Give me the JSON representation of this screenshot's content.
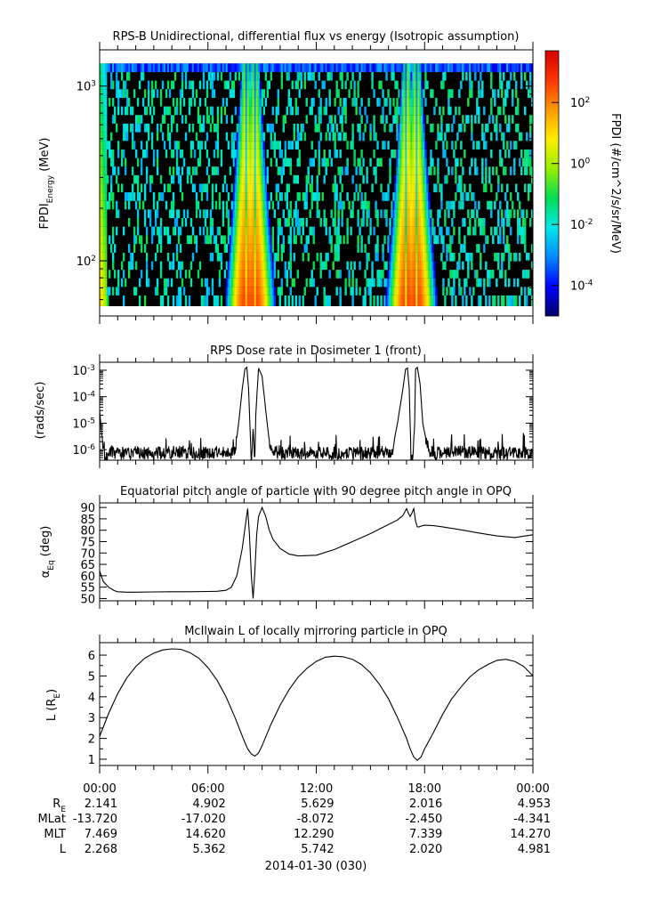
{
  "colors": {
    "background": "#ffffff",
    "line": "#000000",
    "colormap": [
      "#00006a",
      "#0000ff",
      "#0088ff",
      "#00e8e8",
      "#00dd55",
      "#99ee00",
      "#ffee00",
      "#ff9900",
      "#ff3300",
      "#d40000"
    ]
  },
  "chart_data": [
    {
      "type": "heatmap",
      "title": "RPS-B  Unidirectional, differential flux vs energy (Isotropic assumption)",
      "ylabel_main": "FPDI",
      "ylabel_sub": "Energy",
      "ylabel_unit": "(MeV)",
      "y_scale": "log",
      "ylim": [
        55,
        1400
      ],
      "y_ticks": [
        {
          "value": 100,
          "label": "10",
          "exp": "2"
        },
        {
          "value": 1000,
          "label": "10",
          "exp": "3"
        }
      ],
      "colorbar_label": "FPDI (#/cm^2/s/sr/MeV)",
      "colorbar_scale": "log",
      "colorbar_range": [
        1e-05,
        5000
      ],
      "colorbar_ticks": [
        {
          "value": 0.0001,
          "label": "10",
          "exp": "-4"
        },
        {
          "value": 0.01,
          "label": "10",
          "exp": "-2"
        },
        {
          "value": 1,
          "label": "10",
          "exp": "0"
        },
        {
          "value": 100,
          "label": "10",
          "exp": "2"
        }
      ],
      "energy_channels_mev": [
        60,
        67,
        75,
        84,
        94,
        105,
        118,
        132,
        148,
        166,
        186,
        208,
        233,
        261,
        292,
        327,
        366,
        410,
        459,
        514,
        576,
        645,
        722,
        809,
        906,
        1015,
        1137,
        1270
      ],
      "peak_flux_hours": [
        8.1,
        8.6,
        17.0,
        17.55
      ],
      "grid": false
    },
    {
      "type": "line",
      "title": "RPS  Dose rate in Dosimeter 1 (front)",
      "ylabel": "(rads/sec)",
      "y_scale": "log",
      "ylim": [
        4e-07,
        0.002
      ],
      "y_ticks": [
        {
          "value": 1e-06,
          "label": "10",
          "exp": "-6"
        },
        {
          "value": 1e-05,
          "label": "10",
          "exp": "-5"
        },
        {
          "value": 0.0001,
          "label": "10",
          "exp": "-4"
        },
        {
          "value": 0.001,
          "label": "10",
          "exp": "-3"
        }
      ],
      "x_hours": [
        0,
        0.1,
        0.2,
        0.3,
        0.4,
        0.5,
        1,
        2,
        3,
        4,
        5,
        6,
        7,
        7.5,
        7.7,
        7.9,
        8.05,
        8.15,
        8.25,
        8.4,
        8.5,
        8.6,
        8.65,
        8.8,
        9.0,
        9.2,
        9.4,
        9.6,
        10,
        12,
        14,
        16,
        16.2,
        16.5,
        16.8,
        16.95,
        17.05,
        17.15,
        17.25,
        17.35,
        17.45,
        17.5,
        17.6,
        17.75,
        17.9,
        18.1,
        18.3,
        18.6,
        20,
        22,
        24
      ],
      "y": [
        3e-05,
        5e-06,
        1.5e-06,
        6e-07,
        4e-07,
        8e-07,
        7e-07,
        8e-07,
        7e-07,
        8e-07,
        7e-07,
        8e-07,
        8e-07,
        8e-07,
        1e-05,
        0.0002,
        0.0011,
        0.0013,
        0.0002,
        4e-07,
        6e-06,
        4e-07,
        2e-05,
        0.0012,
        0.0006,
        3e-05,
        2e-06,
        8e-07,
        7e-07,
        8e-07,
        7e-07,
        8e-07,
        9e-07,
        1e-05,
        0.0002,
        0.0011,
        0.0012,
        0.0002,
        4e-07,
        4e-07,
        1e-05,
        0.0011,
        0.0013,
        0.0003,
        1e-05,
        2e-06,
        8e-07,
        7e-07,
        8e-07,
        7e-07,
        8e-07
      ],
      "noise": true,
      "grid": false
    },
    {
      "type": "line",
      "title": "Equatorial pitch angle of particle with 90 degree pitch angle in OPQ",
      "ylabel_main": "α",
      "ylabel_sub": "Eq",
      "ylabel_unit": "(deg)",
      "ylim": [
        49,
        92
      ],
      "y_ticks": [
        50,
        55,
        60,
        65,
        70,
        75,
        80,
        85,
        90
      ],
      "x_hours": [
        0,
        0.2,
        0.5,
        0.8,
        1,
        1.5,
        2,
        3,
        4,
        5,
        6,
        6.5,
        7,
        7.3,
        7.6,
        7.9,
        8.1,
        8.2,
        8.3,
        8.4,
        8.5,
        8.6,
        8.7,
        8.8,
        9.0,
        9.2,
        9.4,
        9.6,
        10,
        10.5,
        11,
        12,
        13,
        14,
        15,
        16,
        16.5,
        16.8,
        17.0,
        17.1,
        17.2,
        17.3,
        17.4,
        17.5,
        17.6,
        17.7,
        17.8,
        18,
        18.5,
        19,
        20,
        21,
        22,
        23,
        24
      ],
      "y": [
        62,
        57.5,
        55,
        53.5,
        53,
        52.8,
        52.8,
        52.9,
        53,
        53,
        53.1,
        53.2,
        53.6,
        55,
        60,
        72,
        84,
        89.5,
        78,
        60,
        50,
        62,
        78,
        86,
        90,
        86,
        80,
        76,
        72,
        69.5,
        68.7,
        69,
        71.5,
        75,
        78.5,
        82.5,
        84.5,
        86.5,
        89.5,
        87.5,
        86,
        87.5,
        89.5,
        84,
        81.5,
        81.5,
        81.8,
        82.2,
        82,
        81.5,
        80.2,
        78.8,
        77.5,
        76.8,
        78
      ]
    },
    {
      "type": "line",
      "title": "McIlwain L of locally mirroring particle in OPQ",
      "ylabel_main": "L (R",
      "ylabel_sub": "E",
      "ylabel_unit": ")",
      "ylim": [
        0.7,
        6.6
      ],
      "y_ticks": [
        1,
        2,
        3,
        4,
        5,
        6
      ],
      "x_hours": [
        0,
        0.5,
        1,
        1.5,
        2,
        2.5,
        3,
        3.5,
        4,
        4.5,
        5,
        5.5,
        6,
        6.5,
        7,
        7.5,
        8,
        8.2,
        8.4,
        8.6,
        8.8,
        9,
        9.5,
        10,
        10.5,
        11,
        11.5,
        12,
        12.5,
        13,
        13.5,
        14,
        14.5,
        15,
        15.5,
        16,
        16.5,
        17,
        17.2,
        17.4,
        17.6,
        17.8,
        18,
        18.5,
        19,
        19.5,
        20,
        20.5,
        21,
        21.5,
        22,
        22.5,
        23,
        23.5,
        24
      ],
      "y": [
        2.1,
        3.2,
        4.15,
        4.9,
        5.45,
        5.85,
        6.1,
        6.25,
        6.3,
        6.28,
        6.12,
        5.85,
        5.4,
        4.8,
        4.0,
        3.0,
        1.9,
        1.5,
        1.25,
        1.15,
        1.3,
        1.65,
        2.7,
        3.6,
        4.35,
        4.95,
        5.38,
        5.7,
        5.9,
        5.95,
        5.92,
        5.8,
        5.55,
        5.15,
        4.6,
        3.9,
        3.0,
        2.0,
        1.5,
        1.1,
        0.95,
        1.1,
        1.5,
        2.3,
        3.15,
        3.9,
        4.45,
        4.95,
        5.3,
        5.55,
        5.75,
        5.8,
        5.7,
        5.45,
        5.0
      ]
    }
  ],
  "x_axis": {
    "xlim": [
      0,
      24
    ],
    "tick_labels": [
      "00:00",
      "06:00",
      "12:00",
      "18:00",
      "00:00"
    ],
    "tick_hours": [
      0,
      6,
      12,
      18,
      24
    ],
    "minor_tick_hours": [
      1,
      2,
      3,
      4,
      5,
      7,
      8,
      9,
      10,
      11,
      13,
      14,
      15,
      16,
      17,
      19,
      20,
      21,
      22,
      23
    ],
    "date_label": "2014-01-30 (030)"
  },
  "ephemeris": [
    {
      "name": "R",
      "sub": "E",
      "values": [
        "2.141",
        "4.902",
        "5.629",
        "2.016",
        "4.953"
      ]
    },
    {
      "name": "MLat",
      "sub": "",
      "values": [
        "-13.720",
        "-17.020",
        "-8.072",
        "-2.450",
        "-4.341"
      ]
    },
    {
      "name": "MLT",
      "sub": "",
      "values": [
        "7.469",
        "14.620",
        "12.290",
        "7.339",
        "14.270"
      ]
    },
    {
      "name": "L",
      "sub": "",
      "values": [
        "2.268",
        "5.362",
        "5.742",
        "2.020",
        "4.981"
      ]
    }
  ]
}
